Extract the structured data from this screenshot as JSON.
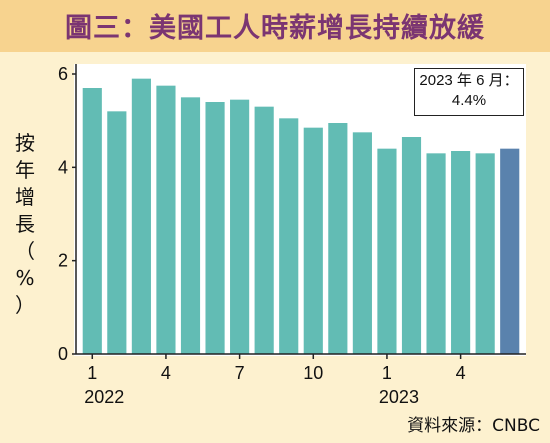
{
  "title": "圖三：美國工人時薪增長持續放緩",
  "annotation": {
    "line1": "2023 年 6 月：",
    "line2": "4.4%"
  },
  "source": "資料來源：CNBC",
  "colors": {
    "bar": "#62bcb4",
    "bar_last": "#5a82ad",
    "title": "#7b3572",
    "band": "#f7d38f",
    "bg": "#fdf1cf"
  },
  "chart_data": {
    "type": "bar",
    "title": "圖三：美國工人時薪增長持續放緩",
    "ylabel_chars": [
      "按",
      "年",
      "增",
      "長",
      "（",
      "%",
      "）"
    ],
    "ylim": [
      0,
      6
    ],
    "yticks": [
      0,
      2,
      4,
      6
    ],
    "x_tick_labels": [
      {
        "index": 0,
        "label": "1"
      },
      {
        "index": 3,
        "label": "4"
      },
      {
        "index": 6,
        "label": "7"
      },
      {
        "index": 9,
        "label": "10"
      },
      {
        "index": 12,
        "label": "1"
      },
      {
        "index": 15,
        "label": "4"
      }
    ],
    "year_labels": [
      {
        "index": 0,
        "label": "2022"
      },
      {
        "index": 12,
        "label": "2023"
      }
    ],
    "categories": [
      "2022-01",
      "2022-02",
      "2022-03",
      "2022-04",
      "2022-05",
      "2022-06",
      "2022-07",
      "2022-08",
      "2022-09",
      "2022-10",
      "2022-11",
      "2022-12",
      "2023-01",
      "2023-02",
      "2023-03",
      "2023-04",
      "2023-05",
      "2023-06"
    ],
    "values": [
      5.7,
      5.2,
      5.9,
      5.75,
      5.5,
      5.4,
      5.45,
      5.3,
      5.05,
      4.85,
      4.95,
      4.75,
      4.4,
      4.65,
      4.3,
      4.35,
      4.3,
      4.4
    ],
    "highlight_index": 17,
    "grid": false
  }
}
